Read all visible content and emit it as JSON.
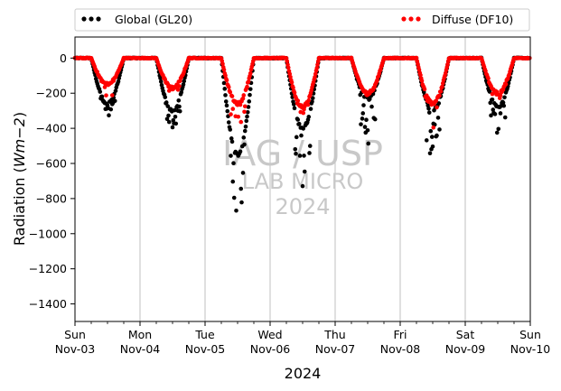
{
  "chart_data": {
    "type": "scatter",
    "title": "",
    "xlabel": "2024",
    "ylabel_prefix": "Radiation (",
    "ylabel_unit": "Wm−2",
    "ylabel_suffix": ")",
    "ylim": [
      -1500,
      120
    ],
    "xlim": [
      0,
      7
    ],
    "yticks": [
      0,
      -200,
      -400,
      -600,
      -800,
      -1000,
      -1200,
      -1400
    ],
    "xticks": [
      {
        "day": "Sun",
        "date": "Nov-03"
      },
      {
        "day": "Mon",
        "date": "Nov-04"
      },
      {
        "day": "Tue",
        "date": "Nov-05"
      },
      {
        "day": "Wed",
        "date": "Nov-06"
      },
      {
        "day": "Thu",
        "date": "Nov-07"
      },
      {
        "day": "Fri",
        "date": "Nov-08"
      },
      {
        "day": "Sat",
        "date": "Nov-09"
      },
      {
        "day": "Sun",
        "date": "Nov-10"
      }
    ],
    "grid": "x-major",
    "legend_position": "above",
    "watermark": [
      "IAG / USP",
      "LAB MICRO",
      "2024"
    ],
    "series": [
      {
        "name": "Global (GL20)",
        "color": "#000000",
        "days": [
          {
            "peak": -260,
            "min": -345,
            "spread": 0.45
          },
          {
            "peak": -300,
            "min": -410,
            "spread": 0.45
          },
          {
            "peak": -550,
            "min": -890,
            "spread": 0.65
          },
          {
            "peak": -400,
            "min": -760,
            "spread": 0.55
          },
          {
            "peak": -230,
            "min": -500,
            "spread": 0.5
          },
          {
            "peak": -300,
            "min": -600,
            "spread": 0.55
          },
          {
            "peak": -280,
            "min": -500,
            "spread": 0.5
          }
        ]
      },
      {
        "name": "Diffuse (DF10)",
        "color": "#ff0000",
        "days": [
          {
            "peak": -150,
            "min": -240,
            "spread": 0.2
          },
          {
            "peak": -170,
            "min": -240,
            "spread": 0.2
          },
          {
            "peak": -260,
            "min": -410,
            "spread": 0.25
          },
          {
            "peak": -280,
            "min": -310,
            "spread": 0.15
          },
          {
            "peak": -200,
            "min": -240,
            "spread": 0.15
          },
          {
            "peak": -260,
            "min": -400,
            "spread": 0.25
          },
          {
            "peak": -200,
            "min": -240,
            "spread": 0.15
          }
        ]
      }
    ]
  }
}
